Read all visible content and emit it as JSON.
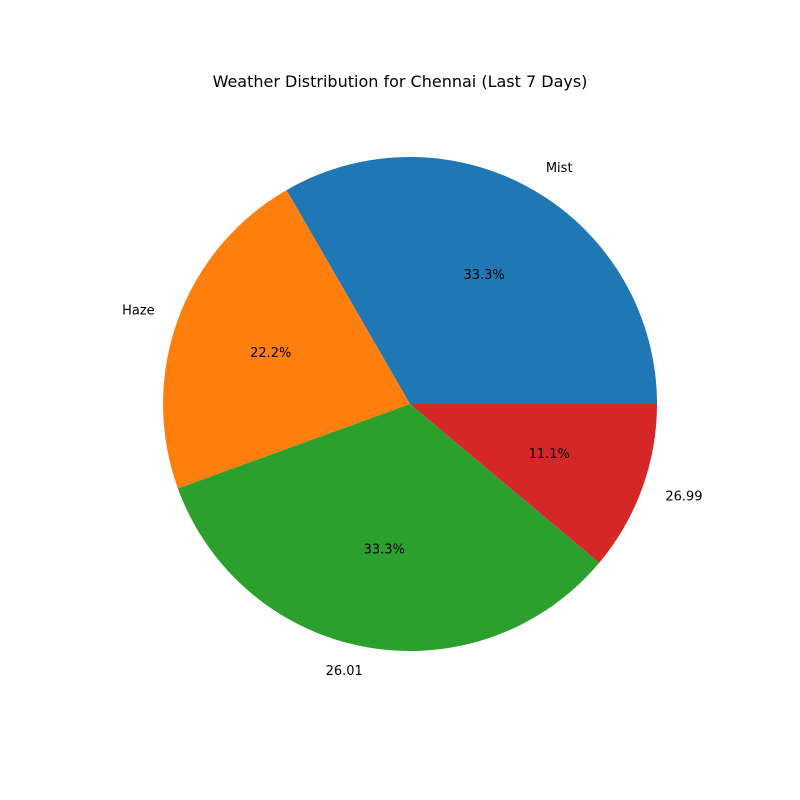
{
  "chart_data": {
    "type": "pie",
    "title": "Weather Distribution for Chennai (Last 7 Days)",
    "labels": [
      "Mist",
      "Haze",
      "26.01",
      "26.99"
    ],
    "percent_labels": [
      "33.3%",
      "22.2%",
      "33.3%",
      "11.1%"
    ],
    "values": [
      33.3,
      22.2,
      33.3,
      11.1
    ],
    "colors": [
      "#1f77b4",
      "#ff7f0e",
      "#2ca02c",
      "#d62728"
    ],
    "start_angle_deg": 0,
    "direction": "counterclockwise",
    "legend": "none"
  }
}
